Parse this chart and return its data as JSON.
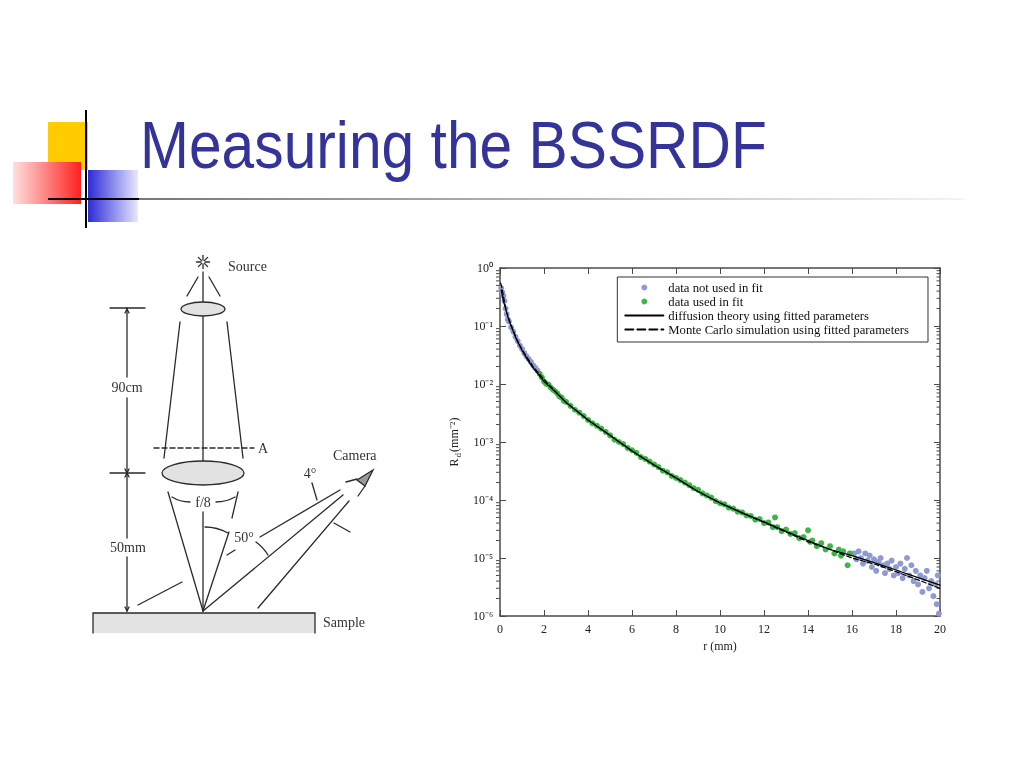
{
  "chart_data": {
    "type": "scatter",
    "title": "Measuring the BSSRDF",
    "xlabel": "r (mm)",
    "ylabel": "R$_{d}$(mm⁻²)",
    "annotations": [
      "Source",
      "90cm",
      "A",
      "Camera",
      "4°",
      "f/8",
      "50°",
      "50mm",
      "Sample"
    ],
    "log": "y",
    "grid": false,
    "legend": "top right",
    "xlim": [
      0,
      20
    ],
    "xticks": [
      0,
      2,
      4,
      6,
      8,
      10,
      12,
      14,
      16,
      18,
      20
    ],
    "ylim": [
      1e-06,
      1
    ],
    "yticks": [
      {
        "value": 1e-06,
        "label": "10⁻⁶"
      },
      {
        "value": 2e-06,
        "label": null
      },
      {
        "value": 3e-06,
        "label": null
      },
      {
        "value": 4e-06,
        "label": null
      },
      {
        "value": 5e-06,
        "label": null
      },
      {
        "value": 6e-06,
        "label": null
      },
      {
        "value": 7e-06,
        "label": null
      },
      {
        "value": 8e-06,
        "label": null
      },
      {
        "value": 9e-06,
        "label": null
      },
      {
        "value": 1e-05,
        "label": "10⁻⁵"
      },
      {
        "value": 2e-05,
        "label": null
      },
      {
        "value": 3e-05,
        "label": null
      },
      {
        "value": 4e-05,
        "label": null
      },
      {
        "value": 5e-05,
        "label": null
      },
      {
        "value": 6e-05,
        "label": null
      },
      {
        "value": 7e-05,
        "label": null
      },
      {
        "value": 8e-05,
        "label": null
      },
      {
        "value": 9e-05,
        "label": null
      },
      {
        "value": 0.0001,
        "label": "10⁻⁴"
      },
      {
        "value": 0.0002,
        "label": null
      },
      {
        "value": 0.0003,
        "label": null
      },
      {
        "value": 0.0004,
        "label": null
      },
      {
        "value": 0.0005,
        "label": null
      },
      {
        "value": 0.0006,
        "label": null
      },
      {
        "value": 0.0007,
        "label": null
      },
      {
        "value": 0.0008,
        "label": null
      },
      {
        "value": 0.0009,
        "label": null
      },
      {
        "value": 0.001,
        "label": "10⁻³"
      },
      {
        "value": 0.002,
        "label": null
      },
      {
        "value": 0.003,
        "label": null
      },
      {
        "value": 0.004,
        "label": null
      },
      {
        "value": 0.005,
        "label": null
      },
      {
        "value": 0.006,
        "label": null
      },
      {
        "value": 0.007,
        "label": null
      },
      {
        "value": 0.008,
        "label": null
      },
      {
        "value": 0.009,
        "label": null
      },
      {
        "value": 0.01,
        "label": "10⁻²"
      },
      {
        "value": 0.02,
        "label": null
      },
      {
        "value": 0.03,
        "label": null
      },
      {
        "value": 0.04,
        "label": null
      },
      {
        "value": 0.05,
        "label": null
      },
      {
        "value": 0.06,
        "label": null
      },
      {
        "value": 0.07,
        "label": null
      },
      {
        "value": 0.08,
        "label": null
      },
      {
        "value": 0.09,
        "label": null
      },
      {
        "value": 0.1,
        "label": "10⁻¹"
      },
      {
        "value": 0.2,
        "label": null
      },
      {
        "value": 0.3,
        "label": null
      },
      {
        "value": 0.4,
        "label": null
      },
      {
        "value": 0.5,
        "label": null
      },
      {
        "value": 0.6,
        "label": null
      },
      {
        "value": 0.7,
        "label": null
      },
      {
        "value": 0.8,
        "label": null
      },
      {
        "value": 0.9,
        "label": null
      },
      {
        "value": 1,
        "label": "10⁰"
      }
    ],
    "series": [
      {
        "name": "data not used in fit",
        "marker": "circle",
        "color": "#8e9ad0",
        "x": [
          0.05,
          0.1,
          0.15,
          0.2,
          0.25,
          0.3,
          0.35,
          0.4,
          0.5,
          0.6,
          0.7,
          0.8,
          0.9,
          1.0,
          1.1,
          1.2,
          1.3,
          1.4,
          1.5,
          1.6,
          1.7,
          16.1,
          16.2,
          16.3,
          16.4,
          16.5,
          16.6,
          16.7,
          16.8,
          16.9,
          17.0,
          17.1,
          17.2,
          17.3,
          17.4,
          17.5,
          17.6,
          17.7,
          17.8,
          17.9,
          18.0,
          18.1,
          18.2,
          18.3,
          18.4,
          18.5,
          18.6,
          18.7,
          18.8,
          18.9,
          19.0,
          19.1,
          19.2,
          19.3,
          19.4,
          19.5,
          19.6,
          19.7,
          19.8,
          19.85,
          19.9,
          19.95
        ],
        "values": [
          0.45,
          0.38,
          0.33,
          0.27,
          0.2,
          0.16,
          0.13,
          0.12,
          0.095,
          0.08,
          0.065,
          0.055,
          0.046,
          0.04,
          0.034,
          0.03,
          0.027,
          0.024,
          0.021,
          0.019,
          0.017,
          1.2e-05,
          9.5e-06,
          1.3e-05,
          1e-05,
          8e-06,
          1.2e-05,
          9e-06,
          1.1e-05,
          7e-06,
          9.5e-06,
          6e-06,
          8.5e-06,
          1e-05,
          7.5e-06,
          5.5e-06,
          8e-06,
          6.5e-06,
          9e-06,
          5e-06,
          7e-06,
          5.5e-06,
          8e-06,
          4.5e-06,
          6.5e-06,
          1e-05,
          5e-06,
          7.5e-06,
          4e-06,
          6e-06,
          3.5e-06,
          5e-06,
          2.6e-06,
          4.5e-06,
          6e-06,
          3e-06,
          4e-06,
          2.2e-06,
          3.5e-06,
          1.6e-06,
          5e-06,
          1.1e-06
        ]
      },
      {
        "name": "data used in fit",
        "marker": "circle",
        "color": "#3db54a",
        "x": [
          1.8,
          1.9,
          2.0,
          2.1,
          2.2,
          2.3,
          2.4,
          2.5,
          2.6,
          2.7,
          2.8,
          2.9,
          3.0,
          3.2,
          3.4,
          3.6,
          3.8,
          4.0,
          4.2,
          4.4,
          4.6,
          4.8,
          5.0,
          5.2,
          5.4,
          5.6,
          5.8,
          6.0,
          6.2,
          6.4,
          6.6,
          6.8,
          7.0,
          7.2,
          7.4,
          7.6,
          7.8,
          8.0,
          8.2,
          8.4,
          8.6,
          8.8,
          9.0,
          9.2,
          9.4,
          9.6,
          9.8,
          10.0,
          10.2,
          10.4,
          10.6,
          10.8,
          11.0,
          11.2,
          11.4,
          11.6,
          11.8,
          12.0,
          12.2,
          12.4,
          12.5,
          12.6,
          12.8,
          13.0,
          13.2,
          13.4,
          13.6,
          13.8,
          14.0,
          14.1,
          14.2,
          14.4,
          14.6,
          14.8,
          15.0,
          15.2,
          15.4,
          15.5,
          15.6,
          15.8,
          15.9
        ],
        "values": [
          0.015,
          0.013,
          0.011,
          0.01,
          0.0098,
          0.0087,
          0.008,
          0.0075,
          0.0069,
          0.0061,
          0.0058,
          0.0051,
          0.0049,
          0.0042,
          0.0036,
          0.0032,
          0.0028,
          0.0024,
          0.0021,
          0.0019,
          0.0017,
          0.0015,
          0.0013,
          0.0011,
          0.001,
          0.00092,
          0.00079,
          0.00072,
          0.00065,
          0.00055,
          0.00051,
          0.00046,
          0.00041,
          0.00037,
          0.00032,
          0.0003,
          0.00026,
          0.00024,
          0.00022,
          0.0002,
          0.00018,
          0.00016,
          0.00015,
          0.00013,
          0.00012,
          0.00011,
          9.6e-05,
          8.8e-05,
          8.4e-05,
          7.4e-05,
          7.1e-05,
          6.3e-05,
          6.1e-05,
          5.4e-05,
          5.3e-05,
          4.6e-05,
          4.7e-05,
          4e-05,
          4.1e-05,
          3.4e-05,
          5e-05,
          3.4e-05,
          2.9e-05,
          3.1e-05,
          2.6e-05,
          2.7e-05,
          2.2e-05,
          2.3e-05,
          3e-05,
          1.9e-05,
          2e-05,
          1.6e-05,
          1.8e-05,
          1.4e-05,
          1.6e-05,
          1.2e-05,
          1.4e-05,
          1.1e-05,
          1.3e-05,
          7.5e-06,
          1.2e-05
        ]
      },
      {
        "name": "diffusion theory using fitted parameters",
        "type": "line",
        "marker": "none",
        "line_style": "solid",
        "color": "#000000",
        "x": [
          0.05,
          0.15,
          0.25,
          0.4,
          0.5,
          0.75,
          1,
          1.25,
          1.5,
          2,
          2.5,
          3,
          4,
          5,
          6,
          7,
          8,
          9,
          10,
          11,
          12,
          13,
          14,
          15,
          16,
          17,
          18,
          19,
          20
        ],
        "values": [
          0.42,
          0.27,
          0.2,
          0.125,
          0.1,
          0.058,
          0.038,
          0.026,
          0.019,
          0.011,
          0.0074,
          0.0048,
          0.0024,
          0.0013,
          0.0007,
          0.0004,
          0.00024,
          0.00014,
          8.9e-05,
          6e-05,
          4.2e-05,
          2.9e-05,
          2e-05,
          1.4e-05,
          1.1e-05,
          8.3e-06,
          6.2e-06,
          4.6e-06,
          3.4e-06
        ]
      },
      {
        "name": "Monte Carlo simulation using fitted parameters",
        "type": "line",
        "marker": "none",
        "line_style": "dashed",
        "color": "#000000",
        "x": [
          0.03,
          0.1,
          0.2,
          0.3,
          0.5,
          0.75,
          1,
          1.5,
          2,
          3,
          4,
          5,
          6,
          7,
          8,
          9,
          10,
          11,
          12,
          13,
          14,
          15,
          16,
          17,
          18,
          19,
          20
        ],
        "values": [
          0.55,
          0.42,
          0.26,
          0.17,
          0.105,
          0.06,
          0.039,
          0.02,
          0.012,
          0.0048,
          0.0024,
          0.0013,
          0.0007,
          0.0004,
          0.00024,
          0.00014,
          8.9e-05,
          6e-05,
          4.1e-05,
          2.8e-05,
          1.9e-05,
          1.4e-05,
          1e-05,
          7.9e-06,
          5.8e-06,
          4.2e-06,
          3e-06
        ]
      }
    ]
  }
}
